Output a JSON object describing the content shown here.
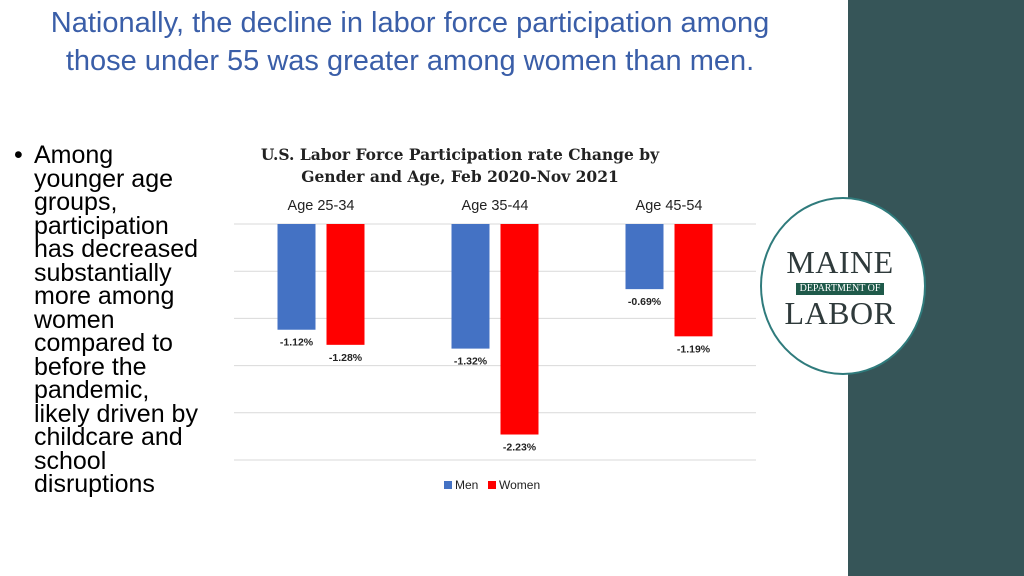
{
  "slide": {
    "title": "Nationally, the decline in labor force participation among those under 55 was greater among women than men.",
    "bullet": "Among younger age groups, participation has decreased substantially more among women compared to before the pandemic, likely driven by childcare and school disruptions"
  },
  "logo": {
    "line1": "MAINE",
    "band": "DEPARTMENT OF",
    "line2": "LABOR"
  },
  "colors": {
    "men": "#4472c4",
    "women": "#ff0000",
    "title": "#3a5ea8",
    "panel": "#365558"
  },
  "chart_data": {
    "type": "bar",
    "title": "U.S. Labor Force Participation rate Change by Gender and Age, Feb 2020-Nov 2021",
    "title_lines": [
      "U.S. Labor Force Participation rate Change by",
      "Gender and Age, Feb 2020-Nov 2021"
    ],
    "categories": [
      "Age 25-34",
      "Age 35-44",
      "Age 45-54"
    ],
    "series": [
      {
        "name": "Men",
        "values": [
          -1.12,
          -1.32,
          -0.69
        ],
        "labels": [
          "-1.12%",
          "-1.32%",
          "-0.69%"
        ],
        "color": "#4472c4"
      },
      {
        "name": "Women",
        "values": [
          -1.28,
          -2.23,
          -1.19
        ],
        "labels": [
          "-1.28%",
          "-2.23%",
          "-1.19%"
        ],
        "color": "#ff0000"
      }
    ],
    "ylim": [
      -2.5,
      0
    ],
    "grid": true,
    "legend": "bottom",
    "xlabel": "",
    "ylabel": ""
  }
}
